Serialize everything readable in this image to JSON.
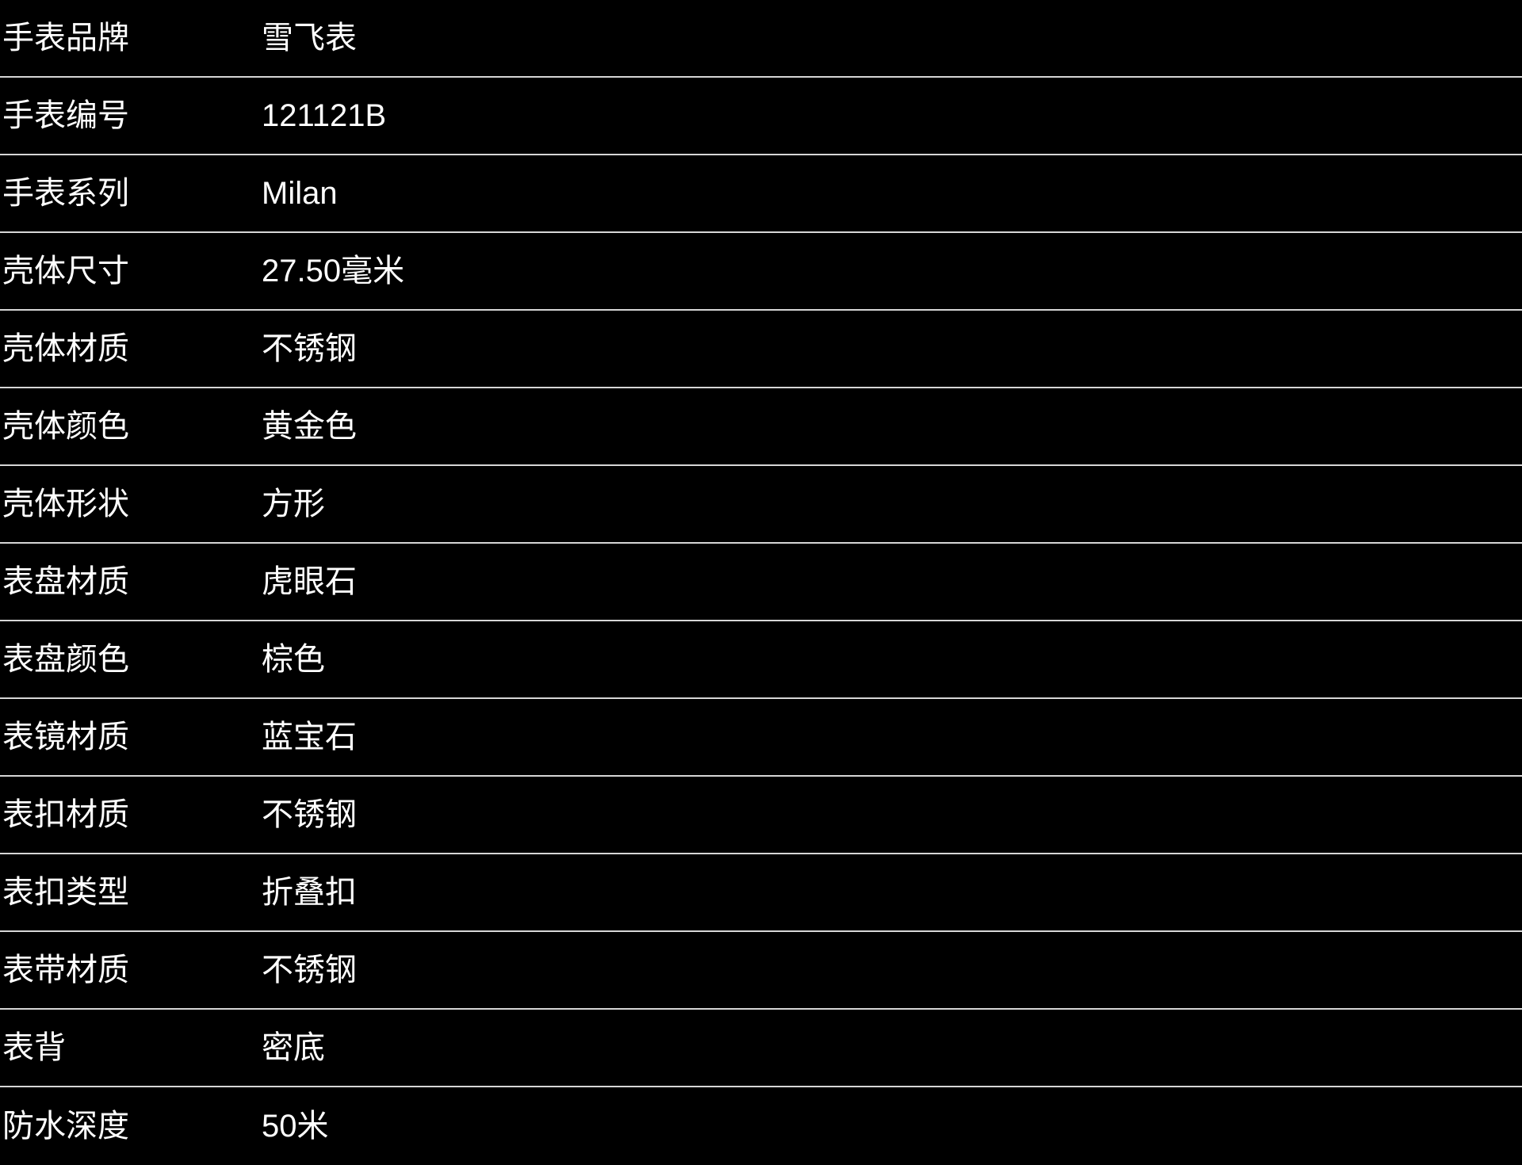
{
  "colors": {
    "background": "#000000",
    "text": "#ffffff",
    "divider": "#d6d6d6"
  },
  "table": {
    "rows": [
      {
        "label": "手表品牌",
        "value": "雪飞表"
      },
      {
        "label": "手表编号",
        "value": "121121B"
      },
      {
        "label": "手表系列",
        "value": "Milan"
      },
      {
        "label": "壳体尺寸",
        "value": "27.50毫米"
      },
      {
        "label": "壳体材质",
        "value": "不锈钢"
      },
      {
        "label": "壳体颜色",
        "value": "黄金色"
      },
      {
        "label": "壳体形状",
        "value": "方形"
      },
      {
        "label": "表盘材质",
        "value": "虎眼石"
      },
      {
        "label": "表盘颜色",
        "value": "棕色"
      },
      {
        "label": "表镜材质",
        "value": "蓝宝石"
      },
      {
        "label": "表扣材质",
        "value": "不锈钢"
      },
      {
        "label": "表扣类型",
        "value": "折叠扣"
      },
      {
        "label": "表带材质",
        "value": "不锈钢"
      },
      {
        "label": "表背",
        "value": "密底"
      },
      {
        "label": "防水深度",
        "value": "50米"
      }
    ]
  }
}
